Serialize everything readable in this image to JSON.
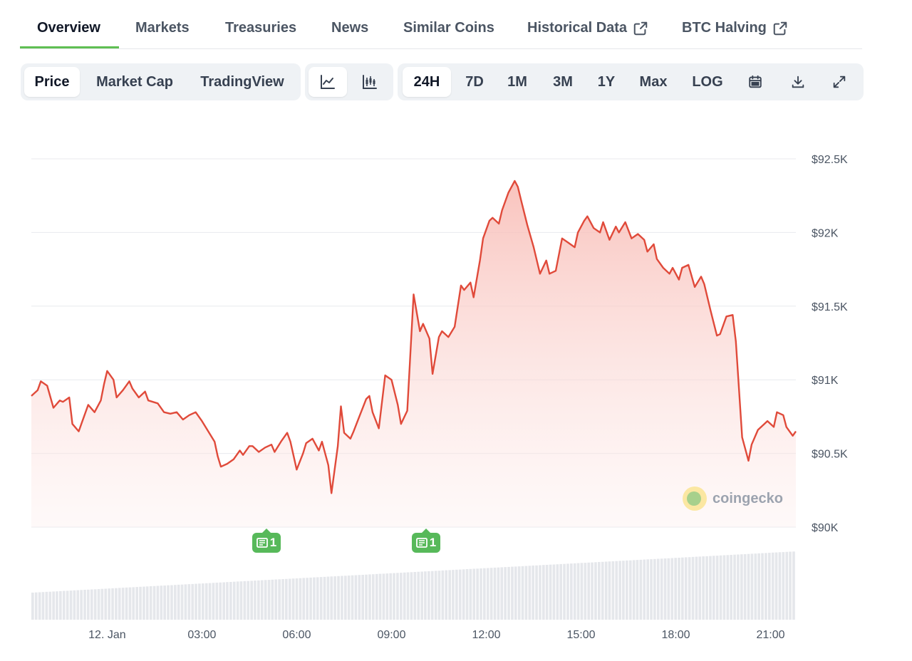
{
  "tabs": [
    {
      "label": "Overview",
      "active": true
    },
    {
      "label": "Markets"
    },
    {
      "label": "Treasuries"
    },
    {
      "label": "News"
    },
    {
      "label": "Similar Coins"
    },
    {
      "label": "Historical Data",
      "icon": "external-link-icon"
    },
    {
      "label": "BTC Halving",
      "icon": "external-link-icon"
    }
  ],
  "toolbar": {
    "data_type": [
      "Price",
      "Market Cap",
      "TradingView"
    ],
    "data_type_selected": "Price",
    "chart_style_icons": [
      "line-chart-icon",
      "candlestick-chart-icon"
    ],
    "chart_style_selected": "line-chart-icon",
    "ranges": [
      "24H",
      "7D",
      "1M",
      "3M",
      "1Y",
      "Max",
      "LOG"
    ],
    "range_selected": "24H",
    "action_icons": [
      "calendar-icon",
      "download-icon",
      "expand-icon"
    ]
  },
  "news_markers": [
    {
      "count": "1",
      "time": "05:00"
    },
    {
      "count": "1",
      "time": "10:00"
    }
  ],
  "watermark": "coingecko",
  "colors": {
    "line": "#e04a3a",
    "fill": "#fbd4d0",
    "accent": "#5fbf53",
    "news": "#57b95a",
    "volume": "#e5e7eb"
  },
  "chart_data": {
    "type": "area",
    "y_ticks": [
      "$90K",
      "$90.5K",
      "$91K",
      "$91.5K",
      "$92K",
      "$92.5K"
    ],
    "x_ticks": [
      "12. Jan",
      "03:00",
      "06:00",
      "09:00",
      "12:00",
      "15:00",
      "18:00",
      "21:00"
    ],
    "ylim": [
      90000,
      92500
    ],
    "x_hours_range": [
      -2.4,
      21.8
    ],
    "grid": true,
    "series": [
      {
        "values": [
          [
            -2.4,
            90890
          ],
          [
            -2.2,
            90930
          ],
          [
            -2.1,
            90990
          ],
          [
            -1.9,
            90960
          ],
          [
            -1.7,
            90810
          ],
          [
            -1.5,
            90860
          ],
          [
            -1.4,
            90850
          ],
          [
            -1.2,
            90880
          ],
          [
            -1.1,
            90700
          ],
          [
            -0.9,
            90650
          ],
          [
            -0.8,
            90710
          ],
          [
            -0.6,
            90830
          ],
          [
            -0.4,
            90780
          ],
          [
            -0.2,
            90860
          ],
          [
            -0.1,
            90970
          ],
          [
            0.0,
            91060
          ],
          [
            0.2,
            91000
          ],
          [
            0.3,
            90880
          ],
          [
            0.5,
            90930
          ],
          [
            0.7,
            90990
          ],
          [
            0.8,
            90940
          ],
          [
            1.0,
            90880
          ],
          [
            1.2,
            90920
          ],
          [
            1.3,
            90860
          ],
          [
            1.6,
            90840
          ],
          [
            1.8,
            90780
          ],
          [
            2.0,
            90770
          ],
          [
            2.2,
            90780
          ],
          [
            2.4,
            90730
          ],
          [
            2.6,
            90760
          ],
          [
            2.8,
            90780
          ],
          [
            3.0,
            90720
          ],
          [
            3.2,
            90650
          ],
          [
            3.4,
            90580
          ],
          [
            3.5,
            90480
          ],
          [
            3.6,
            90410
          ],
          [
            3.8,
            90430
          ],
          [
            4.0,
            90460
          ],
          [
            4.2,
            90520
          ],
          [
            4.3,
            90490
          ],
          [
            4.5,
            90550
          ],
          [
            4.6,
            90550
          ],
          [
            4.8,
            90510
          ],
          [
            5.0,
            90540
          ],
          [
            5.2,
            90560
          ],
          [
            5.3,
            90510
          ],
          [
            5.5,
            90580
          ],
          [
            5.7,
            90640
          ],
          [
            5.8,
            90580
          ],
          [
            6.0,
            90390
          ],
          [
            6.2,
            90500
          ],
          [
            6.3,
            90570
          ],
          [
            6.5,
            90600
          ],
          [
            6.7,
            90520
          ],
          [
            6.8,
            90580
          ],
          [
            7.0,
            90420
          ],
          [
            7.1,
            90230
          ],
          [
            7.3,
            90550
          ],
          [
            7.4,
            90820
          ],
          [
            7.5,
            90640
          ],
          [
            7.7,
            90600
          ],
          [
            7.8,
            90650
          ],
          [
            8.0,
            90760
          ],
          [
            8.2,
            90870
          ],
          [
            8.3,
            90890
          ],
          [
            8.4,
            90780
          ],
          [
            8.6,
            90670
          ],
          [
            8.8,
            91030
          ],
          [
            9.0,
            91000
          ],
          [
            9.2,
            90830
          ],
          [
            9.3,
            90700
          ],
          [
            9.5,
            90790
          ],
          [
            9.7,
            91580
          ],
          [
            9.9,
            91330
          ],
          [
            10.0,
            91380
          ],
          [
            10.2,
            91280
          ],
          [
            10.3,
            91040
          ],
          [
            10.5,
            91290
          ],
          [
            10.6,
            91330
          ],
          [
            10.8,
            91290
          ],
          [
            11.0,
            91360
          ],
          [
            11.2,
            91640
          ],
          [
            11.3,
            91610
          ],
          [
            11.5,
            91660
          ],
          [
            11.6,
            91560
          ],
          [
            11.8,
            91810
          ],
          [
            11.9,
            91960
          ],
          [
            12.1,
            92080
          ],
          [
            12.2,
            92100
          ],
          [
            12.4,
            92060
          ],
          [
            12.5,
            92150
          ],
          [
            12.7,
            92270
          ],
          [
            12.9,
            92350
          ],
          [
            13.0,
            92310
          ],
          [
            13.1,
            92220
          ],
          [
            13.3,
            92050
          ],
          [
            13.5,
            91900
          ],
          [
            13.7,
            91720
          ],
          [
            13.9,
            91810
          ],
          [
            14.0,
            91720
          ],
          [
            14.2,
            91740
          ],
          [
            14.4,
            91960
          ],
          [
            14.6,
            91930
          ],
          [
            14.8,
            91900
          ],
          [
            14.9,
            92000
          ],
          [
            15.1,
            92080
          ],
          [
            15.2,
            92110
          ],
          [
            15.4,
            92030
          ],
          [
            15.6,
            92000
          ],
          [
            15.7,
            92070
          ],
          [
            15.9,
            91950
          ],
          [
            16.1,
            92040
          ],
          [
            16.2,
            92000
          ],
          [
            16.4,
            92070
          ],
          [
            16.6,
            91960
          ],
          [
            16.8,
            91990
          ],
          [
            17.0,
            91950
          ],
          [
            17.1,
            91870
          ],
          [
            17.3,
            91920
          ],
          [
            17.4,
            91820
          ],
          [
            17.6,
            91760
          ],
          [
            17.8,
            91720
          ],
          [
            17.9,
            91760
          ],
          [
            18.1,
            91680
          ],
          [
            18.2,
            91760
          ],
          [
            18.4,
            91780
          ],
          [
            18.6,
            91630
          ],
          [
            18.8,
            91700
          ],
          [
            18.9,
            91650
          ],
          [
            19.1,
            91470
          ],
          [
            19.3,
            91300
          ],
          [
            19.4,
            91310
          ],
          [
            19.6,
            91430
          ],
          [
            19.8,
            91440
          ],
          [
            19.9,
            91260
          ],
          [
            20.1,
            90610
          ],
          [
            20.3,
            90450
          ],
          [
            20.4,
            90560
          ],
          [
            20.6,
            90660
          ],
          [
            20.8,
            90700
          ],
          [
            20.9,
            90720
          ],
          [
            21.1,
            90680
          ],
          [
            21.2,
            90780
          ],
          [
            21.4,
            90760
          ],
          [
            21.5,
            90680
          ],
          [
            21.7,
            90620
          ],
          [
            21.8,
            90650
          ]
        ]
      }
    ]
  }
}
